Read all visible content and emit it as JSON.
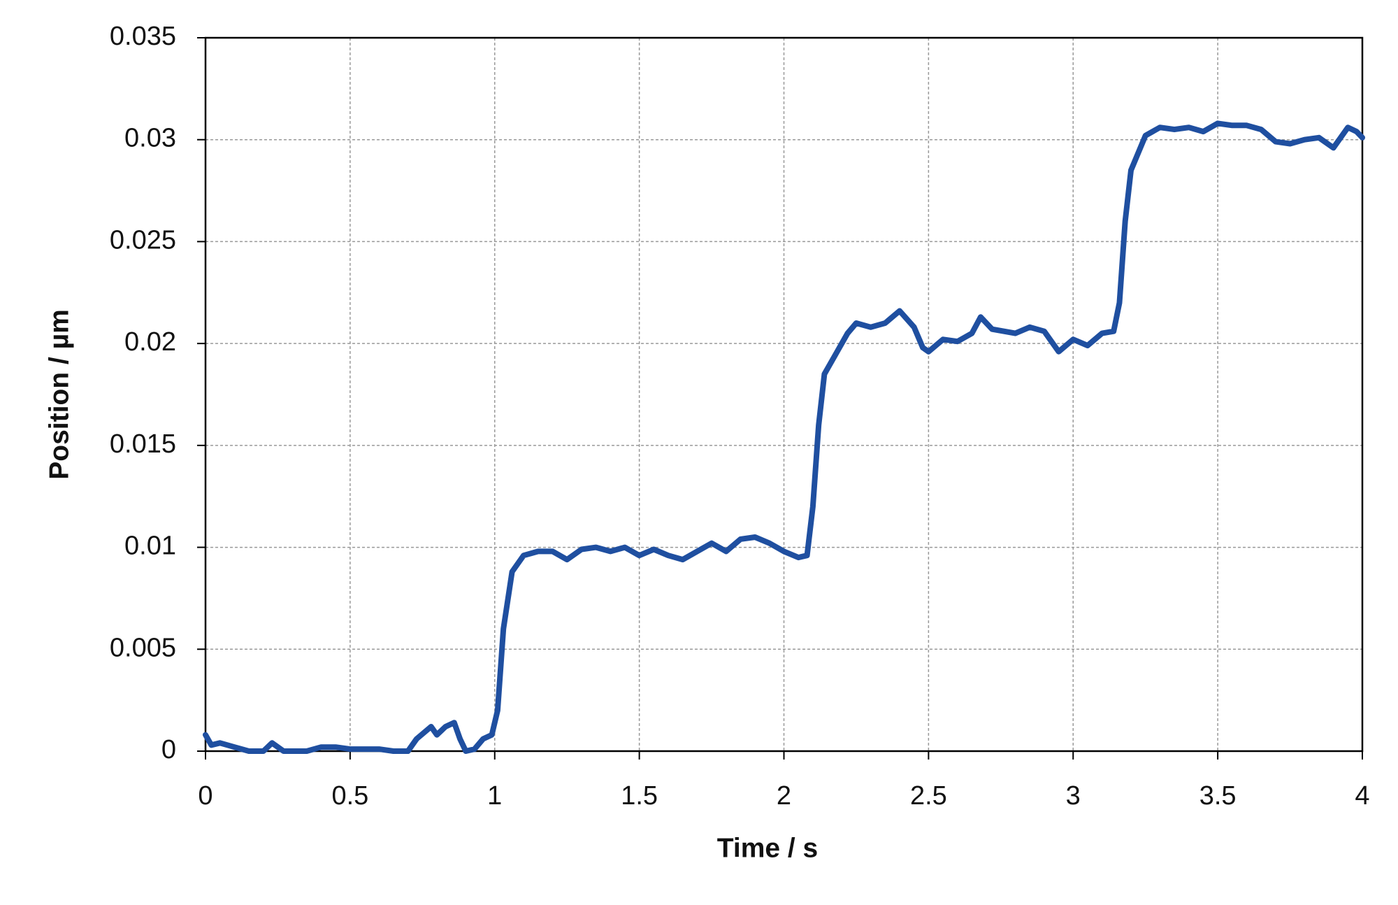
{
  "chart_data": {
    "type": "line",
    "xlabel": "Time / s",
    "ylabel": "Position / µm",
    "x": [
      0,
      0.02,
      0.05,
      0.1,
      0.15,
      0.2,
      0.23,
      0.27,
      0.35,
      0.4,
      0.45,
      0.5,
      0.55,
      0.6,
      0.65,
      0.7,
      0.73,
      0.78,
      0.8,
      0.83,
      0.86,
      0.88,
      0.9,
      0.93,
      0.96,
      0.99,
      1.01,
      1.03,
      1.06,
      1.1,
      1.15,
      1.2,
      1.25,
      1.3,
      1.35,
      1.4,
      1.45,
      1.5,
      1.55,
      1.6,
      1.65,
      1.7,
      1.75,
      1.8,
      1.85,
      1.9,
      1.95,
      2.0,
      2.05,
      2.08,
      2.1,
      2.12,
      2.14,
      2.18,
      2.22,
      2.25,
      2.3,
      2.35,
      2.4,
      2.45,
      2.48,
      2.5,
      2.55,
      2.6,
      2.65,
      2.68,
      2.72,
      2.8,
      2.85,
      2.9,
      2.95,
      3.0,
      3.05,
      3.1,
      3.14,
      3.16,
      3.18,
      3.2,
      3.25,
      3.3,
      3.35,
      3.4,
      3.45,
      3.5,
      3.55,
      3.6,
      3.65,
      3.7,
      3.75,
      3.8,
      3.85,
      3.9,
      3.95,
      3.98,
      4.0
    ],
    "values": [
      0.0008,
      0.0003,
      0.0004,
      0.0002,
      0,
      0,
      0.0004,
      0,
      0,
      0.0002,
      0.0002,
      0.0001,
      0.0001,
      0.0001,
      0,
      0,
      0.0006,
      0.0012,
      0.0008,
      0.0012,
      0.0014,
      0.0006,
      0,
      0.0001,
      0.0006,
      0.0008,
      0.002,
      0.006,
      0.0088,
      0.0096,
      0.0098,
      0.0098,
      0.0094,
      0.0099,
      0.01,
      0.0098,
      0.01,
      0.0096,
      0.0099,
      0.0096,
      0.0094,
      0.0098,
      0.0102,
      0.0098,
      0.0104,
      0.0105,
      0.0102,
      0.0098,
      0.0095,
      0.0096,
      0.012,
      0.016,
      0.0185,
      0.0195,
      0.0205,
      0.021,
      0.0208,
      0.021,
      0.0216,
      0.0208,
      0.0198,
      0.0196,
      0.0202,
      0.0201,
      0.0205,
      0.0213,
      0.0207,
      0.0205,
      0.0208,
      0.0206,
      0.0196,
      0.0202,
      0.0199,
      0.0205,
      0.0206,
      0.022,
      0.026,
      0.0285,
      0.0302,
      0.0306,
      0.0305,
      0.0306,
      0.0304,
      0.0308,
      0.0307,
      0.0307,
      0.0305,
      0.0299,
      0.0298,
      0.03,
      0.0301,
      0.0296,
      0.0306,
      0.0304,
      0.0301
    ],
    "color": "#1f4fa0",
    "xlim": [
      0,
      4
    ],
    "xticks": [
      0,
      0.5,
      1,
      1.5,
      2,
      2.5,
      3,
      3.5,
      4
    ],
    "ylim": [
      0,
      0.035
    ],
    "yticks": [
      0,
      0.005,
      0.01,
      0.015,
      0.02,
      0.025,
      0.03,
      0.035
    ],
    "grid": true
  }
}
